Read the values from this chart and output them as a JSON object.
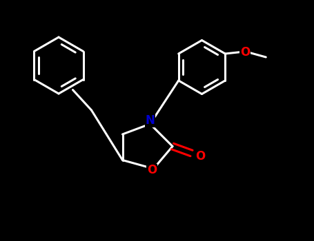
{
  "background_color": "#000000",
  "line_color": "#ffffff",
  "N_color": "#0000CD",
  "O_color": "#FF0000",
  "line_width": 2.2,
  "figsize": [
    4.55,
    3.5
  ],
  "dpi": 100,
  "xlim": [
    0,
    9.1
  ],
  "ylim": [
    0,
    7.0
  ],
  "font_size": 12
}
